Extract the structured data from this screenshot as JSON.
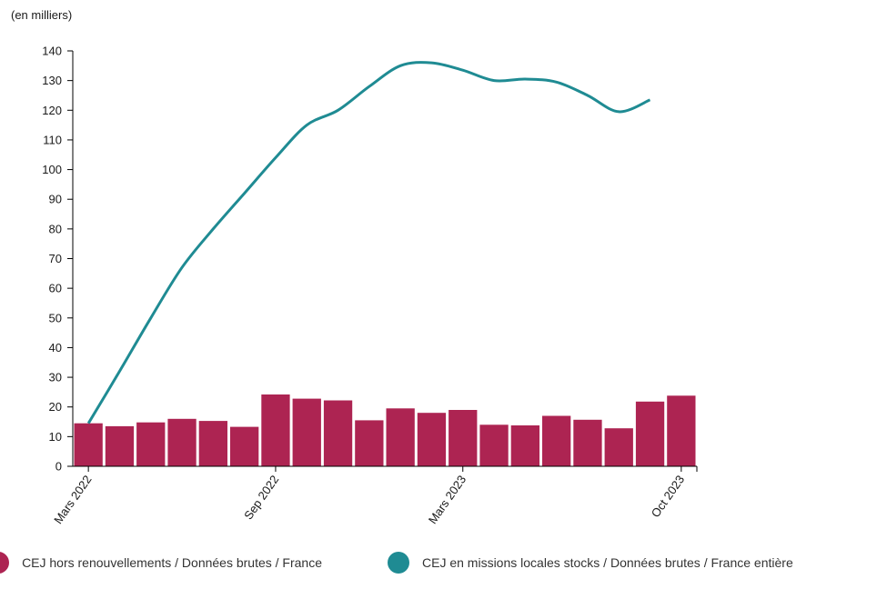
{
  "chart_data": {
    "type": "bar+line",
    "unit_label": "(en milliers)",
    "ylim": [
      0,
      140
    ],
    "yticks": [
      0,
      10,
      20,
      30,
      40,
      50,
      60,
      70,
      80,
      90,
      100,
      110,
      120,
      130,
      140
    ],
    "x_tick_labels": [
      {
        "month_index": 0,
        "label": "Mars 2022"
      },
      {
        "month_index": 6,
        "label": "Sep 2022"
      },
      {
        "month_index": 12,
        "label": "Mars 2023"
      },
      {
        "month_index": 19,
        "label": "Oct 2023"
      }
    ],
    "months": [
      "2022-03",
      "2022-04",
      "2022-05",
      "2022-06",
      "2022-07",
      "2022-08",
      "2022-09",
      "2022-10",
      "2022-11",
      "2022-12",
      "2023-01",
      "2023-02",
      "2023-03",
      "2023-04",
      "2023-05",
      "2023-06",
      "2023-07",
      "2023-08",
      "2023-09",
      "2023-10"
    ],
    "series": [
      {
        "name": "CEJ hors renouvellements / Données brutes / France",
        "kind": "bar",
        "color": "#ad2452",
        "values": [
          14.5,
          13.5,
          14.8,
          16,
          15.3,
          13.3,
          24.2,
          22.8,
          22.2,
          15.5,
          19.5,
          18,
          19,
          14,
          13.8,
          17,
          15.7,
          12.8,
          21.8,
          23.8
        ]
      },
      {
        "name": "CEJ en missions locales stocks / Données brutes / France entière",
        "kind": "line",
        "color": "#1f8b93",
        "values": [
          14.5,
          32,
          50,
          67,
          80,
          92,
          104,
          115,
          120,
          128,
          135,
          136,
          133.5,
          130,
          130.5,
          129.5,
          125,
          119.5,
          123.5
        ]
      }
    ]
  }
}
